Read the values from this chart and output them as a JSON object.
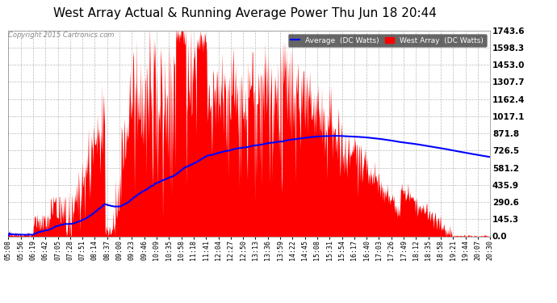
{
  "title": "West Array Actual & Running Average Power Thu Jun 18 20:44",
  "copyright": "Copyright 2015 Cartronics.com",
  "legend_labels": [
    "Average  (DC Watts)",
    "West Array  (DC Watts)"
  ],
  "legend_colors": [
    "#0000ff",
    "#ff0000"
  ],
  "yticks": [
    0.0,
    145.3,
    290.6,
    435.9,
    581.2,
    726.5,
    871.8,
    1017.1,
    1162.4,
    1307.7,
    1453.0,
    1598.3,
    1743.6
  ],
  "ymax": 1743.6,
  "ymin": 0.0,
  "background_color": "#ffffff",
  "plot_background": "#ffffff",
  "grid_color": "#aaaaaa",
  "title_fontsize": 11,
  "tick_fontsize": 6.0,
  "x_tick_labels": [
    "05:08",
    "05:56",
    "06:19",
    "06:42",
    "07:05",
    "07:28",
    "07:51",
    "08:14",
    "08:37",
    "09:00",
    "09:23",
    "09:46",
    "10:09",
    "10:35",
    "10:58",
    "11:18",
    "11:41",
    "12:04",
    "12:27",
    "12:50",
    "13:13",
    "13:36",
    "13:59",
    "14:22",
    "14:45",
    "15:08",
    "15:31",
    "15:54",
    "16:17",
    "16:40",
    "17:03",
    "17:26",
    "17:49",
    "18:12",
    "18:35",
    "18:58",
    "19:21",
    "19:44",
    "20:07",
    "20:30"
  ]
}
